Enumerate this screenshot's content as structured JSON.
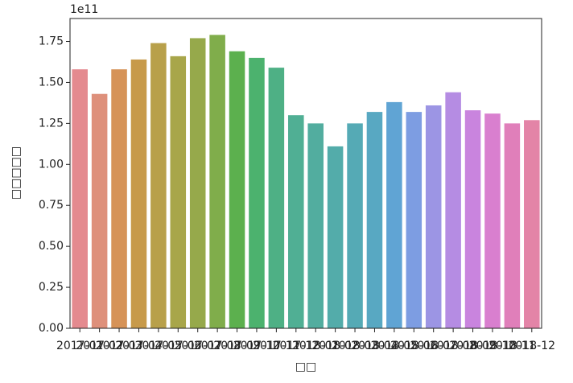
{
  "chart_data": {
    "type": "bar",
    "offset_text": "1e11",
    "xlabel": "□□",
    "ylabel": "□□□□□",
    "categories": [
      "2017-01",
      "2017-02",
      "2017-03",
      "2017-04",
      "2017-05",
      "2017-06",
      "2017-07",
      "2017-08",
      "2017-09",
      "2017-10",
      "2017-11",
      "2017-12",
      "2018-01",
      "2018-02",
      "2018-03",
      "2018-04",
      "2018-05",
      "2018-06",
      "2018-07",
      "2018-08",
      "2018-09",
      "2018-10",
      "2018-11",
      "2018-12"
    ],
    "values": [
      1.58,
      1.43,
      1.58,
      1.64,
      1.74,
      1.66,
      1.77,
      1.79,
      1.69,
      1.65,
      1.59,
      1.3,
      1.25,
      1.11,
      1.25,
      1.32,
      1.38,
      1.32,
      1.36,
      1.44,
      1.33,
      1.31,
      1.25,
      1.27
    ],
    "colors": [
      "#e48a8f",
      "#de907b",
      "#d69358",
      "#c79a4a",
      "#b8a04a",
      "#a8a64a",
      "#96a94b",
      "#80ad4b",
      "#5cb04e",
      "#4cb26e",
      "#4eb085",
      "#50af94",
      "#52ad9f",
      "#53acaa",
      "#55aab5",
      "#58a8c2",
      "#60a4d4",
      "#7d9de2",
      "#9c95e4",
      "#b58ce3",
      "#c984de",
      "#d97fcf",
      "#e07fba",
      "#e384a7"
    ],
    "ylim": [
      0,
      1.89
    ],
    "yticks": [
      {
        "value": 0,
        "label": "0.00"
      },
      {
        "value": 0.25,
        "label": "0.25"
      },
      {
        "value": 0.5,
        "label": "0.50"
      },
      {
        "value": 0.75,
        "label": "0.75"
      },
      {
        "value": 1,
        "label": "1.00"
      },
      {
        "value": 1.25,
        "label": "1.25"
      },
      {
        "value": 1.5,
        "label": "1.50"
      },
      {
        "value": 1.75,
        "label": "1.75"
      }
    ]
  }
}
